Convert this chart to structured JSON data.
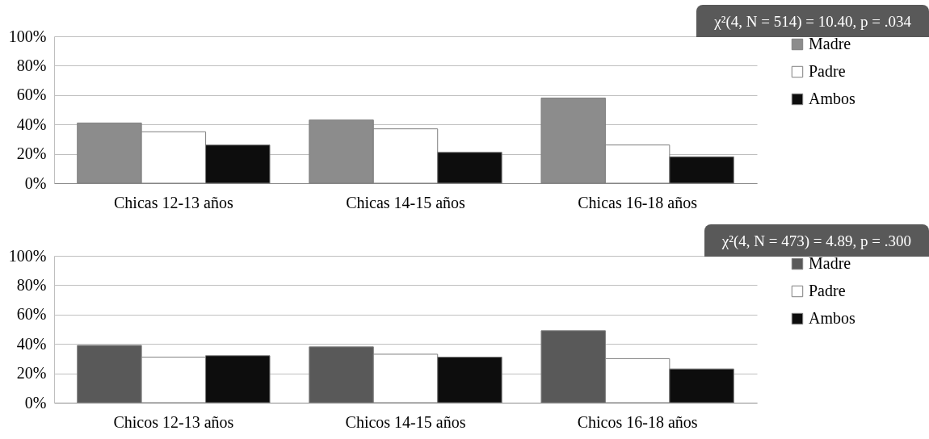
{
  "chart_data": [
    {
      "type": "bar",
      "categories": [
        "Chicas 12-13 años",
        "Chicas 14-15 años",
        "Chicas 16-18 años"
      ],
      "series": [
        {
          "name": "Madre",
          "color": "#8c8c8c",
          "values": [
            41,
            43,
            58
          ]
        },
        {
          "name": "Padre",
          "color": "#ffffff",
          "values": [
            35,
            37,
            26
          ]
        },
        {
          "name": "Ambos",
          "color": "#0d0d0d",
          "values": [
            26,
            21,
            18
          ]
        }
      ],
      "ylim": [
        0,
        100
      ],
      "yticks": [
        {
          "value": 0,
          "label": "0%"
        },
        {
          "value": 20,
          "label": "20%"
        },
        {
          "value": 40,
          "label": "40%"
        },
        {
          "value": 60,
          "label": "60%"
        },
        {
          "value": 80,
          "label": "80%"
        },
        {
          "value": 100,
          "label": "100%"
        }
      ],
      "grid": "y",
      "legend": "right",
      "annotations": [
        "χ²(4, N = 514) = 10.40, p = .034"
      ]
    },
    {
      "type": "bar",
      "categories": [
        "Chicos 12-13 años",
        "Chicos 14-15 años",
        "Chicos 16-18 años"
      ],
      "series": [
        {
          "name": "Madre",
          "color": "#595959",
          "values": [
            39,
            38,
            49
          ]
        },
        {
          "name": "Padre",
          "color": "#ffffff",
          "values": [
            31,
            33,
            30
          ]
        },
        {
          "name": "Ambos",
          "color": "#0d0d0d",
          "values": [
            32,
            31,
            23
          ]
        }
      ],
      "ylim": [
        0,
        100
      ],
      "yticks": [
        {
          "value": 0,
          "label": "0%"
        },
        {
          "value": 20,
          "label": "20%"
        },
        {
          "value": 40,
          "label": "40%"
        },
        {
          "value": 60,
          "label": "60%"
        },
        {
          "value": 80,
          "label": "80%"
        },
        {
          "value": 100,
          "label": "100%"
        }
      ],
      "grid": "y",
      "legend": "right",
      "annotations": [
        "χ²(4, N = 473) = 4.89, p = .300"
      ]
    }
  ]
}
